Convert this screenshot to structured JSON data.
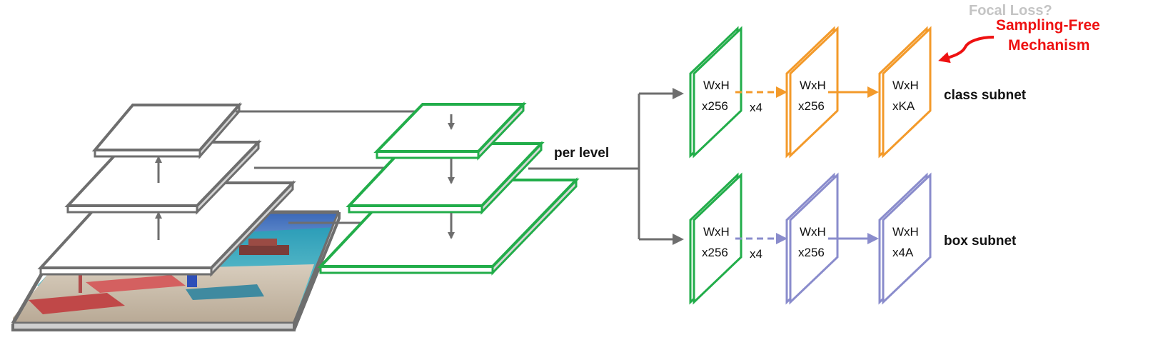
{
  "annotations": {
    "focal_loss": "Focal Loss?",
    "sampling_free_line1": "Sampling-Free",
    "sampling_free_line2": "Mechanism"
  },
  "labels": {
    "per_level": "per level",
    "class_subnet": "class subnet",
    "box_subnet": "box subnet"
  },
  "class_subnet": {
    "stages": [
      {
        "line1": "WxH",
        "line2": "x256"
      },
      {
        "line1": "WxH",
        "line2": "x256"
      },
      {
        "line1": "WxH",
        "line2": "xKA"
      }
    ],
    "repeat": "x4"
  },
  "box_subnet": {
    "stages": [
      {
        "line1": "WxH",
        "line2": "x256"
      },
      {
        "line1": "WxH",
        "line2": "x256"
      },
      {
        "line1": "WxH",
        "line2": "x4A"
      }
    ],
    "repeat": "x4"
  },
  "colors": {
    "gray": "#6e6e6e",
    "green": "#22ad4a",
    "orange": "#f39a2a",
    "purple": "#8a8ccc",
    "red": "#ee1111",
    "light_gray": "#c4c4c4"
  }
}
